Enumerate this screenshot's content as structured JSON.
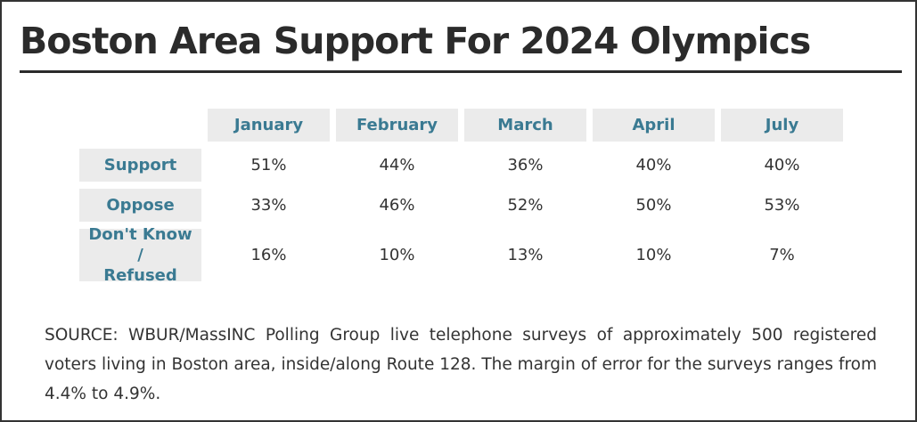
{
  "title": "Boston Area Support For 2024 Olympics",
  "source_text": "SOURCE: WBUR/MassINC Polling Group live telephone surveys of approximately 500 registered voters living in Boston area, inside/along Route 128. The margin of error for the surveys ranges from 4.4% to 4.9%.",
  "colors": {
    "header_text": "#3a7a92",
    "header_bg": "#ebebeb",
    "body_text": "#333333"
  },
  "chart_data": {
    "type": "table",
    "title": "Boston Area Support For 2024 Olympics",
    "columns": [
      "January",
      "February",
      "March",
      "April",
      "July"
    ],
    "rows": [
      {
        "label": "Support",
        "values": [
          "51%",
          "44%",
          "36%",
          "40%",
          "40%"
        ]
      },
      {
        "label": "Oppose",
        "values": [
          "33%",
          "46%",
          "52%",
          "50%",
          "53%"
        ]
      },
      {
        "label_line1": "Don't Know /",
        "label_line2": "Refused",
        "values": [
          "16%",
          "10%",
          "13%",
          "10%",
          "7%"
        ]
      }
    ]
  }
}
